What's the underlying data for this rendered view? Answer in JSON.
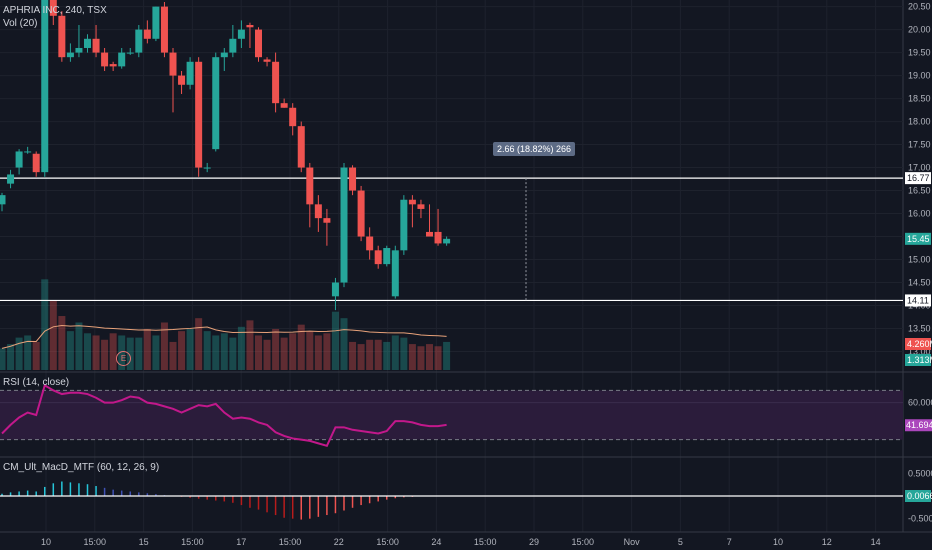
{
  "header": {
    "symbol": "APHRIA INC, 240, TSX",
    "volume_label": "Vol (20)",
    "rsi_label": "RSI (14, close)",
    "macd_label": "CM_Ult_MacD_MTF (60, 12, 26, 9)"
  },
  "measure_label": "2.66 (18.82%) 266",
  "earnings_marker": "E",
  "price_axis": {
    "ticks": [
      "20.50",
      "20.00",
      "19.50",
      "19.00",
      "18.50",
      "18.00",
      "17.50",
      "17.00",
      "16.50",
      "16.00",
      "15.50",
      "15.00",
      "14.50",
      "14.00",
      "13.50",
      "13.00"
    ],
    "markers": [
      {
        "label": "16.77",
        "color": "#ffffff",
        "text_color": "#131722"
      },
      {
        "label": "15.45",
        "color": "#26a69a",
        "text_color": "#ffffff"
      },
      {
        "label": "14.11",
        "color": "#ffffff",
        "text_color": "#131722"
      },
      {
        "label": "4.260M",
        "color": "#ef5350",
        "text_color": "#ffffff"
      },
      {
        "label": "1.313M",
        "color": "#26a69a",
        "text_color": "#ffffff"
      }
    ]
  },
  "rsi_axis": {
    "ticks": [
      "60.0000"
    ],
    "current": {
      "label": "41.6940",
      "color": "#ab47bc"
    }
  },
  "macd_axis": {
    "ticks": [
      "0.5000",
      "-0.5000"
    ],
    "current": {
      "label": "0.0066",
      "color": "#26a69a"
    }
  },
  "time_axis": [
    "10",
    "15:00",
    "15",
    "15:00",
    "17",
    "15:00",
    "22",
    "15:00",
    "24",
    "15:00",
    "29",
    "15:00",
    "Nov",
    "5",
    "7",
    "10",
    "12",
    "14"
  ],
  "colors": {
    "up": "#26a69a",
    "down": "#ef5350",
    "rsi": "#c2188b",
    "band": "#2b1c3b",
    "background": "#131722",
    "grid": "#1e222d"
  },
  "chart_data": [
    {
      "type": "candlestick",
      "title": "APHRIA INC, 240, TSX",
      "ylim": [
        13.25,
        20.6
      ],
      "horizontal_lines": [
        16.77,
        14.11
      ],
      "measure": {
        "change": "2.66",
        "percent": "18.82%",
        "bars": "266"
      },
      "candles": [
        {
          "o": 16.2,
          "h": 16.45,
          "l": 16.05,
          "c": 16.4
        },
        {
          "o": 16.65,
          "h": 16.95,
          "l": 16.55,
          "c": 16.85
        },
        {
          "o": 17.0,
          "h": 17.4,
          "l": 16.85,
          "c": 17.35
        },
        {
          "o": 17.35,
          "h": 17.45,
          "l": 17.3,
          "c": 17.35
        },
        {
          "o": 17.3,
          "h": 17.35,
          "l": 16.8,
          "c": 16.9
        },
        {
          "o": 16.9,
          "h": 20.9,
          "l": 16.8,
          "c": 20.8
        },
        {
          "o": 20.8,
          "h": 20.9,
          "l": 20.1,
          "c": 20.3
        },
        {
          "o": 20.3,
          "h": 20.4,
          "l": 19.3,
          "c": 19.4
        },
        {
          "o": 19.4,
          "h": 19.7,
          "l": 19.3,
          "c": 19.5
        },
        {
          "o": 19.5,
          "h": 20.1,
          "l": 19.4,
          "c": 19.6
        },
        {
          "o": 19.6,
          "h": 19.9,
          "l": 19.5,
          "c": 19.8
        },
        {
          "o": 19.8,
          "h": 20.1,
          "l": 19.4,
          "c": 19.5
        },
        {
          "o": 19.5,
          "h": 19.6,
          "l": 19.1,
          "c": 19.2
        },
        {
          "o": 19.25,
          "h": 19.3,
          "l": 19.1,
          "c": 19.2
        },
        {
          "o": 19.2,
          "h": 19.6,
          "l": 19.15,
          "c": 19.5
        },
        {
          "o": 19.5,
          "h": 19.6,
          "l": 19.45,
          "c": 19.5
        },
        {
          "o": 19.5,
          "h": 20.1,
          "l": 19.4,
          "c": 20.0
        },
        {
          "o": 20.0,
          "h": 20.2,
          "l": 19.7,
          "c": 19.8
        },
        {
          "o": 19.8,
          "h": 20.5,
          "l": 19.75,
          "c": 20.5
        },
        {
          "o": 20.5,
          "h": 20.6,
          "l": 19.4,
          "c": 19.5
        },
        {
          "o": 19.5,
          "h": 19.6,
          "l": 18.2,
          "c": 19.0
        },
        {
          "o": 19.0,
          "h": 19.1,
          "l": 18.6,
          "c": 18.8
        },
        {
          "o": 18.8,
          "h": 19.4,
          "l": 18.7,
          "c": 19.3
        },
        {
          "o": 19.3,
          "h": 19.4,
          "l": 16.8,
          "c": 17.0
        },
        {
          "o": 17.0,
          "h": 17.1,
          "l": 16.9,
          "c": 17.0
        },
        {
          "o": 17.4,
          "h": 19.5,
          "l": 17.35,
          "c": 19.4
        },
        {
          "o": 19.4,
          "h": 19.6,
          "l": 19.1,
          "c": 19.5
        },
        {
          "o": 19.5,
          "h": 20.1,
          "l": 19.4,
          "c": 19.8
        },
        {
          "o": 19.8,
          "h": 20.2,
          "l": 19.6,
          "c": 20.0
        },
        {
          "o": 20.1,
          "h": 20.15,
          "l": 19.6,
          "c": 20.05
        },
        {
          "o": 20.0,
          "h": 20.05,
          "l": 19.3,
          "c": 19.4
        },
        {
          "o": 19.35,
          "h": 19.4,
          "l": 19.2,
          "c": 19.3
        },
        {
          "o": 19.3,
          "h": 19.5,
          "l": 18.2,
          "c": 18.4
        },
        {
          "o": 18.4,
          "h": 18.5,
          "l": 18.3,
          "c": 18.3
        },
        {
          "o": 18.3,
          "h": 18.4,
          "l": 17.7,
          "c": 17.9
        },
        {
          "o": 17.9,
          "h": 18.0,
          "l": 16.9,
          "c": 17.0
        },
        {
          "o": 17.0,
          "h": 17.1,
          "l": 15.7,
          "c": 16.2
        },
        {
          "o": 16.2,
          "h": 16.4,
          "l": 15.6,
          "c": 15.9
        },
        {
          "o": 15.9,
          "h": 16.1,
          "l": 15.3,
          "c": 15.8
        },
        {
          "o": 14.2,
          "h": 14.6,
          "l": 13.9,
          "c": 14.5
        },
        {
          "o": 14.5,
          "h": 17.1,
          "l": 14.4,
          "c": 17.0
        },
        {
          "o": 17.0,
          "h": 17.05,
          "l": 16.4,
          "c": 16.5
        },
        {
          "o": 16.5,
          "h": 16.6,
          "l": 15.4,
          "c": 15.5
        },
        {
          "o": 15.5,
          "h": 15.7,
          "l": 15.0,
          "c": 15.2
        },
        {
          "o": 15.2,
          "h": 15.3,
          "l": 14.8,
          "c": 14.9
        },
        {
          "o": 14.9,
          "h": 15.3,
          "l": 14.85,
          "c": 15.25
        },
        {
          "o": 14.2,
          "h": 15.3,
          "l": 14.15,
          "c": 15.2
        },
        {
          "o": 15.2,
          "h": 16.4,
          "l": 15.1,
          "c": 16.3
        },
        {
          "o": 16.3,
          "h": 16.4,
          "l": 15.7,
          "c": 16.2
        },
        {
          "o": 16.2,
          "h": 16.3,
          "l": 15.9,
          "c": 16.1
        },
        {
          "o": 15.6,
          "h": 16.2,
          "l": 15.5,
          "c": 15.5
        },
        {
          "o": 15.6,
          "h": 16.1,
          "l": 15.3,
          "c": 15.35
        },
        {
          "o": 15.35,
          "h": 15.5,
          "l": 15.3,
          "c": 15.45
        }
      ]
    },
    {
      "type": "bar",
      "title": "Vol (20)",
      "current_values": [
        "4.260M",
        "1.313M"
      ],
      "values": [
        1.0,
        1.2,
        1.5,
        1.6,
        1.3,
        4.2,
        3.2,
        2.5,
        1.8,
        2.2,
        1.7,
        1.6,
        1.4,
        1.7,
        1.6,
        1.5,
        1.5,
        1.9,
        1.6,
        2.2,
        1.3,
        1.8,
        1.9,
        2.4,
        1.8,
        1.6,
        1.7,
        1.5,
        2.0,
        2.3,
        1.6,
        1.4,
        1.9,
        1.5,
        1.7,
        2.1,
        1.8,
        1.6,
        1.7,
        2.7,
        2.4,
        1.3,
        1.2,
        1.4,
        1.4,
        1.3,
        1.6,
        1.5,
        1.2,
        1.1,
        1.2,
        1.1,
        1.3
      ]
    },
    {
      "type": "line",
      "title": "RSI (14, close)",
      "current_value": 41.694,
      "ylim": [
        20,
        80
      ],
      "bands": [
        70,
        30
      ],
      "values": [
        35,
        42,
        48,
        52,
        50,
        74,
        70,
        67,
        68,
        68,
        67,
        64,
        60,
        60,
        62,
        65,
        64,
        60,
        59,
        57,
        55,
        52,
        55,
        58,
        57,
        59,
        52,
        47,
        48,
        47,
        44,
        42,
        36,
        33,
        31,
        30,
        29,
        27,
        25,
        40,
        40,
        38,
        37,
        36,
        35,
        37,
        45,
        45,
        44,
        42,
        41,
        41,
        42
      ]
    },
    {
      "type": "bar",
      "title": "CM_Ult_MacD_MTF (60, 12, 26, 9)",
      "current_value": 0.0066,
      "ylim": [
        -0.75,
        0.75
      ],
      "values": [
        0.05,
        0.08,
        0.1,
        0.12,
        0.1,
        0.2,
        0.28,
        0.32,
        0.3,
        0.28,
        0.26,
        0.22,
        0.18,
        0.14,
        0.12,
        0.1,
        0.08,
        0.06,
        0.04,
        0.02,
        0.0,
        -0.02,
        -0.04,
        -0.06,
        -0.08,
        -0.1,
        -0.12,
        -0.15,
        -0.2,
        -0.26,
        -0.3,
        -0.36,
        -0.42,
        -0.48,
        -0.5,
        -0.52,
        -0.5,
        -0.46,
        -0.42,
        -0.38,
        -0.32,
        -0.26,
        -0.2,
        -0.16,
        -0.12,
        -0.08,
        -0.05,
        -0.03,
        -0.02,
        -0.01,
        0.0,
        0.005,
        0.0066
      ]
    }
  ]
}
